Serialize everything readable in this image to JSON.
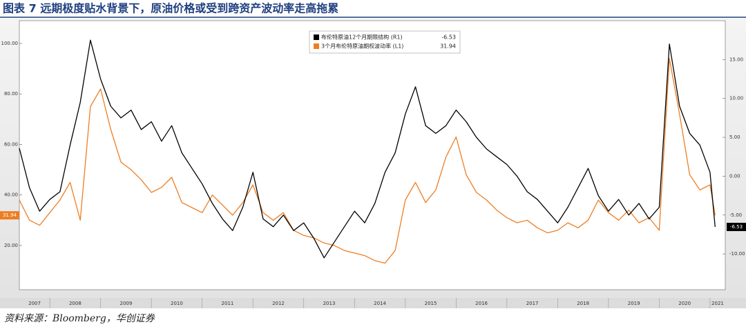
{
  "title": "图表 7 远期极度贴水背景下，原油价格或受到跨资产波动率走高拖累",
  "source": "资料来源：Bloomberg，华创证券",
  "chart_data": {
    "type": "line",
    "x": [
      2007.4,
      2007.6,
      2007.8,
      2008.0,
      2008.2,
      2008.4,
      2008.6,
      2008.8,
      2009.0,
      2009.2,
      2009.4,
      2009.6,
      2009.8,
      2010.0,
      2010.2,
      2010.4,
      2010.6,
      2010.8,
      2011.0,
      2011.2,
      2011.4,
      2011.6,
      2011.8,
      2012.0,
      2012.2,
      2012.4,
      2012.6,
      2012.8,
      2013.0,
      2013.2,
      2013.4,
      2013.6,
      2013.8,
      2014.0,
      2014.2,
      2014.4,
      2014.6,
      2014.8,
      2015.0,
      2015.2,
      2015.4,
      2015.6,
      2015.8,
      2016.0,
      2016.2,
      2016.4,
      2016.6,
      2016.8,
      2017.0,
      2017.2,
      2017.4,
      2017.6,
      2017.8,
      2018.0,
      2018.2,
      2018.4,
      2018.6,
      2018.8,
      2019.0,
      2019.2,
      2019.4,
      2019.6,
      2019.8,
      2020.0,
      2020.2,
      2020.4,
      2020.6,
      2020.8,
      2021.0,
      2021.1
    ],
    "series": [
      {
        "name": "布伦特原油12个月期限结构 (R1)",
        "color": "#000000",
        "axis": "y2",
        "values": [
          3.6,
          -1.5,
          -4.5,
          -3.0,
          -2.0,
          4.0,
          9.5,
          17.5,
          12.5,
          9.0,
          7.5,
          8.5,
          6.0,
          7.0,
          4.5,
          6.5,
          3.0,
          1.0,
          -1.0,
          -3.5,
          -5.5,
          -7.0,
          -4.0,
          0.5,
          -5.5,
          -6.5,
          -5.0,
          -7.0,
          -6.0,
          -8.0,
          -10.5,
          -8.5,
          -6.5,
          -4.5,
          -6.0,
          -3.5,
          0.5,
          3.0,
          8.0,
          11.5,
          6.5,
          5.5,
          6.5,
          8.5,
          7.0,
          5.0,
          3.5,
          2.5,
          1.5,
          0.0,
          -2.0,
          -3.0,
          -4.5,
          -6.0,
          -4.0,
          -1.5,
          1.0,
          -2.5,
          -4.5,
          -3.0,
          -5.0,
          -3.5,
          -5.5,
          -4.0,
          17.0,
          9.0,
          5.5,
          4.0,
          0.5,
          -6.53
        ]
      },
      {
        "name": "3个月布伦特原油期权波动率 (L1)",
        "color": "#ee7d22",
        "values": [
          38,
          30,
          28,
          33,
          38,
          45,
          30,
          75,
          82,
          66,
          53,
          50,
          46,
          41,
          43,
          47,
          37,
          35,
          33,
          40,
          36,
          32,
          37,
          44,
          33,
          30,
          33,
          26,
          24,
          23,
          21,
          20,
          18,
          17,
          16,
          14,
          13,
          18,
          38,
          45,
          37,
          42,
          55,
          63,
          48,
          41,
          38,
          34,
          31,
          29,
          30,
          27,
          25,
          26,
          29,
          27,
          30,
          38,
          33,
          30,
          34,
          29,
          31,
          26,
          94,
          72,
          48,
          42,
          44,
          31.94
        ]
      }
    ],
    "xlim": [
      2007.4,
      2021.3
    ],
    "xticks": [
      2007,
      2008,
      2009,
      2010,
      2011,
      2012,
      2013,
      2014,
      2015,
      2016,
      2017,
      2018,
      2019,
      2020,
      2021
    ],
    "ylim": [
      2.5,
      109
    ],
    "yticks": [
      {
        "value": 20,
        "label": "20.00"
      },
      {
        "value": 40,
        "label": "40.00"
      },
      {
        "value": 60,
        "label": "60.00"
      },
      {
        "value": 80,
        "label": "80.00"
      },
      {
        "value": 100,
        "label": "100.00"
      }
    ],
    "y2lim": [
      -14.6,
      20
    ],
    "y2ticks": [
      {
        "value": -10,
        "label": "-10.00"
      },
      {
        "value": -5,
        "label": "-5.00"
      },
      {
        "value": 0,
        "label": "0.00"
      },
      {
        "value": 5,
        "label": "5.00"
      },
      {
        "value": 10,
        "label": "10.00"
      },
      {
        "value": 15,
        "label": "15.00"
      }
    ],
    "grid": false
  }
}
